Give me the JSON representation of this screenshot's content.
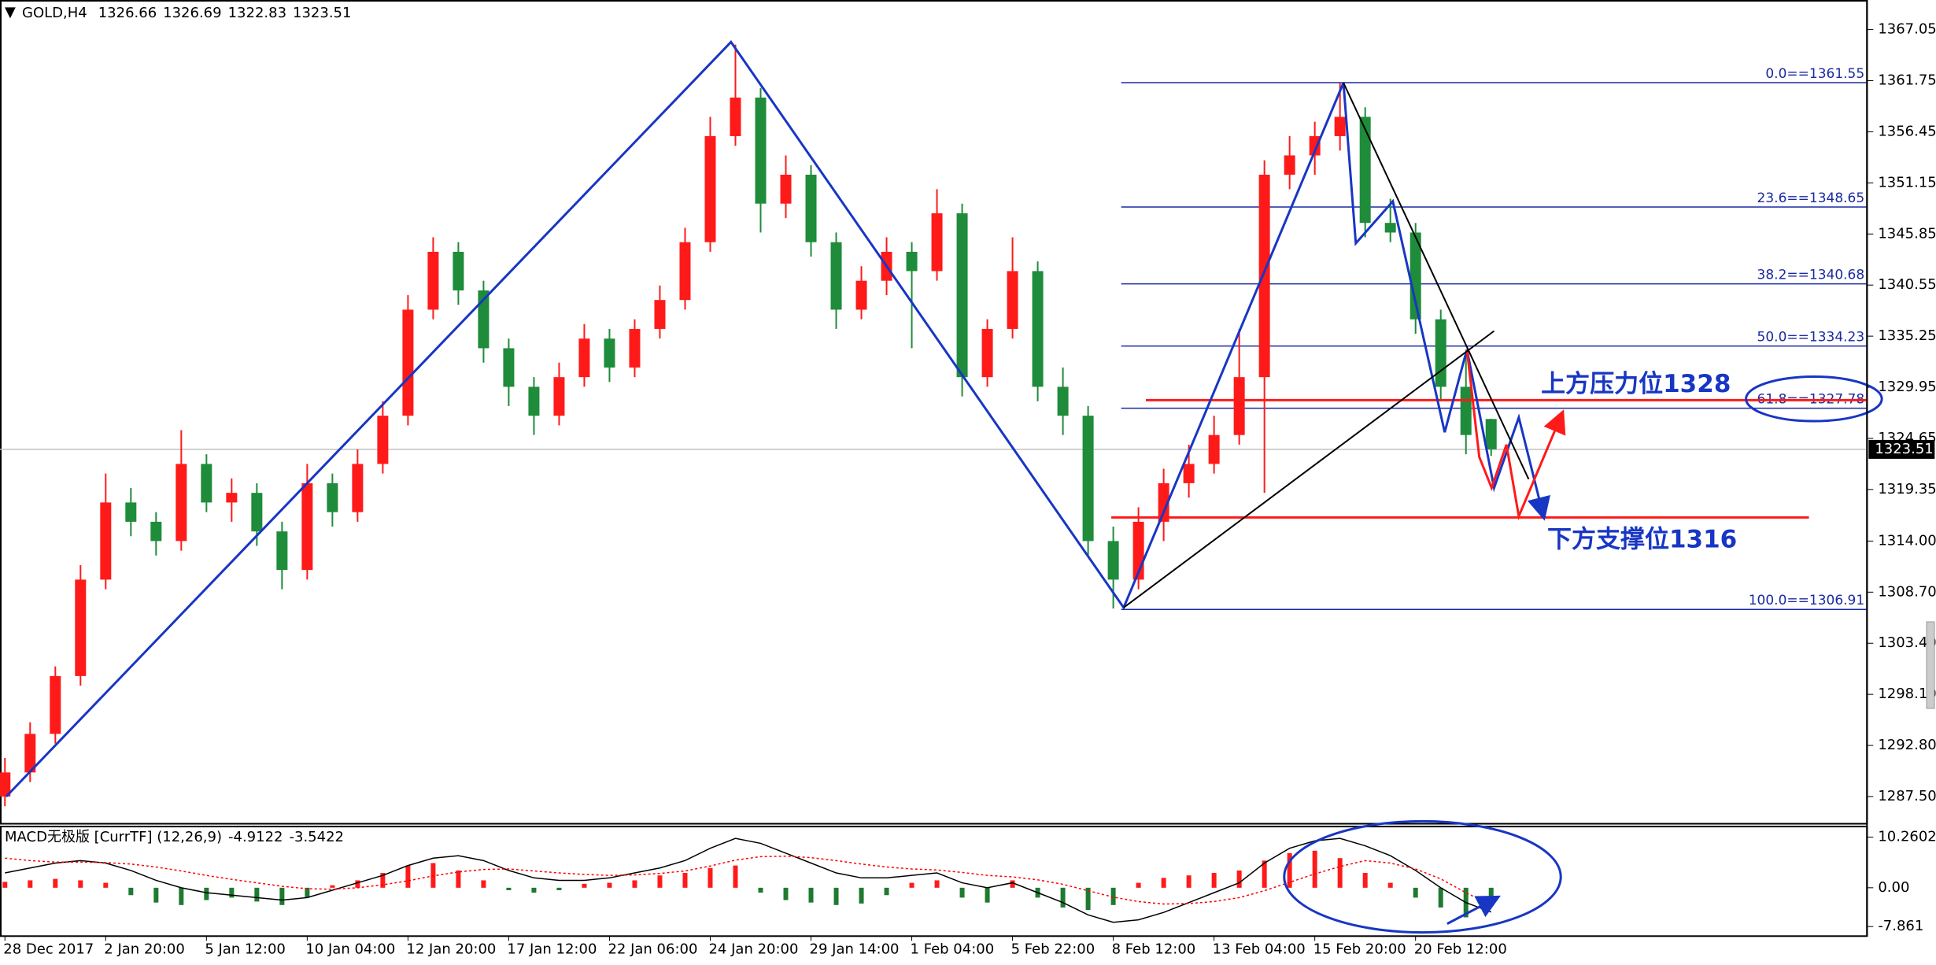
{
  "chart_data": [
    {
      "type": "candlestick",
      "title": "GOLD,H4",
      "categories": [
        "28 Dec 2017",
        null,
        null,
        null,
        "2 Jan 20:00",
        null,
        null,
        null,
        "5 Jan 12:00",
        null,
        null,
        null,
        "10 Jan 04:00",
        null,
        null,
        null,
        "12 Jan 20:00",
        null,
        null,
        null,
        "17 Jan 12:00",
        null,
        null,
        null,
        "22 Jan 06:00",
        null,
        null,
        null,
        "24 Jan 20:00",
        null,
        null,
        null,
        "29 Jan 14:00",
        null,
        null,
        null,
        "1 Feb 04:00",
        null,
        null,
        null,
        "5 Feb 22:00",
        null,
        null,
        null,
        "8 Feb 12:00",
        null,
        null,
        null,
        "13 Feb 04:00",
        null,
        null,
        null,
        "15 Feb 20:00",
        null,
        null,
        null,
        "20 Feb 12:00",
        null,
        null,
        null
      ],
      "open": [
        1287.5,
        1290,
        1294,
        1300,
        1310,
        1318,
        1316,
        1314,
        1322,
        1318,
        1319,
        1315,
        1311,
        1320,
        1317,
        1322,
        1327,
        1338,
        1344,
        1340,
        1334,
        1330,
        1327,
        1331,
        1335,
        1332,
        1336,
        1339,
        1345,
        1356,
        1360,
        1349,
        1352,
        1345,
        1338,
        1341,
        1344,
        1342,
        1348,
        1331,
        1336,
        1342,
        1330,
        1327,
        1314,
        1310,
        1316,
        1320,
        1322,
        1325,
        1331,
        1352,
        1354,
        1356,
        1358,
        1347,
        1346,
        1337,
        1330,
        1326.66
      ],
      "high": [
        1291.5,
        1295.2,
        1301,
        1311.5,
        1321,
        1319.5,
        1317,
        1325.5,
        1323,
        1320.5,
        1320,
        1316,
        1322,
        1321,
        1323.5,
        1328.5,
        1339.5,
        1345.5,
        1345,
        1341,
        1335,
        1331,
        1332.5,
        1336.5,
        1336,
        1337,
        1340.5,
        1346.5,
        1358,
        1365.5,
        1361,
        1354,
        1353,
        1346,
        1342.5,
        1345.5,
        1345,
        1350.5,
        1349,
        1337,
        1345.5,
        1343,
        1332,
        1328,
        1315.5,
        1317.5,
        1321.5,
        1324,
        1327,
        1336,
        1353.5,
        1356,
        1357.5,
        1361.5,
        1359,
        1349.5,
        1347,
        1338,
        1333.5,
        1326.69
      ],
      "low": [
        1286.5,
        1289,
        1293,
        1299,
        1309,
        1314.5,
        1312.5,
        1313,
        1317,
        1316,
        1313.5,
        1309,
        1310,
        1315.5,
        1316,
        1321,
        1326,
        1337,
        1338.5,
        1332.5,
        1328,
        1325,
        1326,
        1330,
        1330.5,
        1331,
        1335,
        1338,
        1344,
        1355,
        1346,
        1347.5,
        1343.5,
        1336,
        1337,
        1339.5,
        1334,
        1341,
        1329,
        1330,
        1335,
        1328.5,
        1325,
        1312.5,
        1307,
        1309,
        1314,
        1318.5,
        1321,
        1324,
        1319,
        1350.5,
        1352,
        1354.5,
        1345.5,
        1345,
        1335.5,
        1328.5,
        1323,
        1322.83
      ],
      "close": [
        1290,
        1294,
        1300,
        1310,
        1318,
        1316,
        1314,
        1322,
        1318,
        1319,
        1315,
        1311,
        1320,
        1317,
        1322,
        1327,
        1338,
        1344,
        1340,
        1334,
        1330,
        1327,
        1331,
        1335,
        1332,
        1336,
        1339,
        1345,
        1356,
        1360,
        1349,
        1352,
        1345,
        1338,
        1341,
        1344,
        1342,
        1348,
        1331,
        1336,
        1342,
        1330,
        1327,
        1314,
        1310,
        1316,
        1320,
        1322,
        1325,
        1331,
        1352,
        1354,
        1356,
        1358,
        1347,
        1346,
        1337,
        1330,
        1325,
        1323.51
      ],
      "up_color": "#ff1a1a",
      "down_color": "#1e8c3a",
      "ylim": [
        1284.68,
        1370.12
      ],
      "yticks": [
        1367.05,
        {
          "value": 1361.75,
          "label": "1361.75"
        },
        1356.45,
        1351.15,
        1345.85,
        1340.55,
        1335.25,
        1329.95,
        1324.65,
        1319.35,
        {
          "value": 1314,
          "label": "1314.00"
        },
        {
          "value": 1308.7,
          "label": "1308.70"
        },
        {
          "value": 1303.4,
          "label": "1303.40"
        },
        {
          "value": 1298.1,
          "label": "1298.10"
        },
        {
          "value": 1292.8,
          "label": "1292.80"
        },
        {
          "value": 1287.5,
          "label": "1287.50"
        }
      ],
      "fibonacci": [
        {
          "value": 1361.55,
          "label": "0.0==1361.55"
        },
        {
          "value": 1348.65,
          "label": "23.6==1348.65"
        },
        {
          "value": 1340.68,
          "label": "38.2==1340.68"
        },
        {
          "value": 1334.23,
          "label": "50.0==1334.23"
        },
        {
          "value": 1327.78,
          "label": "61.8==1327.78"
        },
        {
          "value": 1306.91,
          "label": "100.0==1306.91"
        }
      ],
      "fib_color": "#1a2aa0",
      "annotations": [
        "上方压力位1328",
        "下方支撑位1316"
      ]
    },
    {
      "type": "macd",
      "title": "MACD无极版 [CurrTF] (12,26,9)",
      "values": [
        1.2,
        1.5,
        1.8,
        1.5,
        1.0,
        -1.5,
        -3.0,
        -3.5,
        -2.5,
        -2.0,
        -2.8,
        -3.5,
        -2.0,
        0.5,
        1.5,
        3.0,
        4.5,
        5.0,
        3.5,
        1.5,
        -0.5,
        -1.0,
        -0.5,
        0.8,
        1.0,
        1.5,
        2.5,
        3.0,
        4.0,
        4.5,
        -1.0,
        -2.5,
        -3.0,
        -3.5,
        -3.2,
        -1.5,
        1.0,
        1.5,
        -2.0,
        -3.0,
        1.5,
        -2.0,
        -4.0,
        -4.5,
        -3.5,
        1.0,
        2.0,
        2.5,
        3.0,
        3.5,
        5.5,
        7.0,
        7.5,
        6.0,
        3.0,
        1.0,
        -2.0,
        -4.0,
        -6.0,
        -3.5
      ],
      "up_color": "#ff1a1a",
      "down_color": "#1e7a30",
      "series": [
        {
          "color": "#000000",
          "values": [
            3,
            4,
            5,
            5.5,
            5,
            3.5,
            1.5,
            0,
            -1,
            -1.5,
            -2,
            -2.5,
            -2,
            -0.5,
            1,
            2.5,
            4.5,
            6,
            6.5,
            5.5,
            3.5,
            2,
            1.5,
            1.5,
            2,
            3,
            4,
            5.5,
            8,
            10,
            9,
            7,
            5,
            3,
            2,
            2,
            2.5,
            3,
            1,
            0,
            1,
            -1,
            -3,
            -5.5,
            -7,
            -6.5,
            -5,
            -3,
            -1,
            1,
            5,
            8,
            9.5,
            10,
            8.5,
            6.5,
            3.5,
            0,
            -3,
            -4.9122
          ]
        },
        {
          "color": "#ff0000",
          "dash": true,
          "values": [
            6,
            5.5,
            5.2,
            5.2,
            5.1,
            4.8,
            4.2,
            3.4,
            2.5,
            1.7,
            1.0,
            0.3,
            -0.2,
            -0.3,
            0,
            0.6,
            1.4,
            2.4,
            3.2,
            3.7,
            3.8,
            3.4,
            3.0,
            2.7,
            2.5,
            2.6,
            2.9,
            3.4,
            4.4,
            5.6,
            6.3,
            6.4,
            6.1,
            5.5,
            4.8,
            4.2,
            3.8,
            3.6,
            3.1,
            2.5,
            2.2,
            1.6,
            0.7,
            -0.6,
            -1.9,
            -2.8,
            -3.3,
            -3.2,
            -2.8,
            -2.0,
            -0.6,
            1.1,
            2.8,
            4.3,
            5.5,
            5.0,
            3.8,
            1.8,
            -1.0,
            -3.5422
          ]
        }
      ],
      "ylim": [
        -9.8,
        12.4
      ],
      "yticks": [
        10.2602,
        {
          "value": 0,
          "label": "0.00"
        },
        -7.861
      ]
    }
  ]
}
